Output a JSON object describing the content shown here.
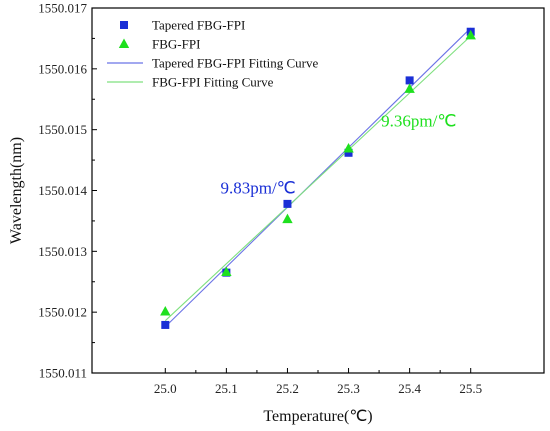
{
  "chart_data": {
    "type": "scatter",
    "xlabel": "Temperature(℃)",
    "ylabel": "Wavelength(nm)",
    "xlim": [
      24.88,
      25.62
    ],
    "ylim": [
      1550.011,
      1550.017
    ],
    "x_ticks": [
      "25.0",
      "25.1",
      "25.2",
      "25.3",
      "25.4",
      "25.5"
    ],
    "y_ticks": [
      "1550.011",
      "1550.012",
      "1550.013",
      "1550.014",
      "1550.015",
      "1550.016",
      "1550.017"
    ],
    "x": [
      25.0,
      25.1,
      25.2,
      25.3,
      25.4,
      25.5
    ],
    "grid": false,
    "legend_position": "top-left",
    "series": [
      {
        "name": "Tapered FBG-FPI",
        "marker": "square",
        "color": "#1a2fd6",
        "values": [
          1550.01179,
          1550.01265,
          1550.01378,
          1550.01462,
          1550.01581,
          1550.01661
        ]
      },
      {
        "name": "FBG-FPI",
        "marker": "triangle",
        "color": "#1ee01e",
        "values": [
          1550.01201,
          1550.01266,
          1550.01353,
          1550.01469,
          1550.01567,
          1550.01655
        ]
      }
    ],
    "fits": [
      {
        "name": "Tapered FBG-FPI Fitting Curve",
        "color": "#6b73e6",
        "endpoints": [
          [
            25.0,
            1550.01176
          ],
          [
            25.5,
            1550.01667
          ]
        ]
      },
      {
        "name": "FBG-FPI Fitting Curve",
        "color": "#7fe07f",
        "endpoints": [
          [
            25.0,
            1550.01186
          ],
          [
            25.5,
            1550.01654
          ]
        ]
      }
    ],
    "annotations": [
      {
        "text": "9.83pm/℃",
        "color": "#1a2fd6",
        "x": 25.152,
        "y": 1550.01395
      },
      {
        "text": "9.36pm/℃",
        "color": "#1ee01e",
        "x": 25.415,
        "y": 1550.01505
      }
    ]
  }
}
